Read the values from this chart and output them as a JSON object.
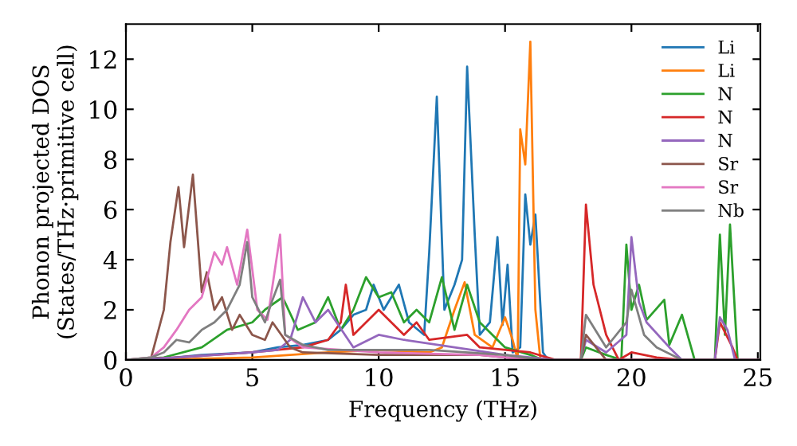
{
  "chart_data": {
    "type": "line",
    "xlabel": "Frequency (THz)",
    "ylabel": "Phonon projected DOS\n(States/THz·primitive cell)",
    "xlim": [
      0,
      25.1
    ],
    "ylim": [
      0,
      13.4
    ],
    "xticks": [
      0,
      5,
      10,
      15,
      20,
      25
    ],
    "yticks": [
      0,
      2,
      4,
      6,
      8,
      10,
      12
    ],
    "legend": "top right",
    "grid": false,
    "series": [
      {
        "name": "Li",
        "color": "#1f77b4",
        "x": [
          0,
          1,
          3,
          5,
          6,
          7,
          8,
          8.5,
          9,
          9.5,
          9.8,
          10.2,
          10.8,
          11.2,
          11.8,
          12.0,
          12.3,
          12.6,
          13.0,
          13.3,
          13.5,
          13.8,
          14.0,
          14.4,
          14.7,
          14.9,
          15.1,
          15.3,
          15.6,
          15.8,
          16.0,
          16.2,
          16.5,
          16.7,
          18,
          25
        ],
        "values": [
          0,
          0,
          0.2,
          0.3,
          0.5,
          0.6,
          0.8,
          1.2,
          1.8,
          2.0,
          3.0,
          2.0,
          3.0,
          1.5,
          1.0,
          4.3,
          10.5,
          2.0,
          3.0,
          4.0,
          11.7,
          5.0,
          1.0,
          1.5,
          4.9,
          1.4,
          3.8,
          0.3,
          0.5,
          6.6,
          4.6,
          5.8,
          0.3,
          0,
          0,
          0
        ]
      },
      {
        "name": "Li",
        "color": "#ff7f0e",
        "x": [
          0,
          1,
          5,
          8,
          10,
          12,
          12.5,
          13.0,
          13.4,
          13.8,
          14.5,
          15.0,
          15.3,
          15.5,
          15.6,
          15.8,
          16.0,
          16.2,
          16.4,
          25
        ],
        "values": [
          0,
          0,
          0.1,
          0.3,
          0.4,
          0.3,
          0.5,
          2.0,
          3.1,
          1.0,
          0.5,
          1.7,
          0.8,
          0,
          9.2,
          7.8,
          12.7,
          2.0,
          0,
          0
        ]
      },
      {
        "name": "N",
        "color": "#2ca02c",
        "x": [
          0,
          1.5,
          3,
          4,
          5,
          5.5,
          6.2,
          6.8,
          7.5,
          8,
          8.5,
          9,
          9.5,
          10,
          10.5,
          11,
          11.5,
          12,
          12.5,
          13,
          13.5,
          14,
          15,
          16,
          16.5,
          18,
          18.2,
          19,
          19.6,
          19.8,
          20,
          20.3,
          20.6,
          21.3,
          21.5,
          22,
          22.5,
          23.3,
          23.5,
          23.7,
          23.9,
          24.2,
          25
        ],
        "values": [
          0,
          0.1,
          0.5,
          1.2,
          1.5,
          2.0,
          2.5,
          1.2,
          1.5,
          2.5,
          1.2,
          2.0,
          3.3,
          2.5,
          2.7,
          1.5,
          2.0,
          1.5,
          3.3,
          1.2,
          3.0,
          1.5,
          0.5,
          0.2,
          0,
          0,
          0.5,
          0.2,
          0,
          4.6,
          2.0,
          3.0,
          1.6,
          2.4,
          0.6,
          1.8,
          0,
          0,
          5.0,
          1.0,
          5.4,
          0,
          0
        ]
      },
      {
        "name": "N",
        "color": "#d62728",
        "x": [
          0,
          2,
          5,
          7,
          8,
          8.5,
          8.7,
          9,
          10,
          11,
          11.5,
          12,
          13.5,
          14,
          16,
          17,
          18,
          18.2,
          18.5,
          19,
          19.5,
          20,
          21,
          22,
          23.3,
          23.5,
          24,
          24.2,
          25
        ],
        "values": [
          0,
          0.1,
          0.3,
          0.5,
          0.8,
          1.5,
          3.0,
          1.0,
          2.0,
          1.0,
          1.5,
          0.8,
          1.0,
          0.5,
          0.3,
          0,
          0,
          6.2,
          3.0,
          1.0,
          0,
          0.3,
          0.1,
          0,
          0,
          1.5,
          0.5,
          0,
          0
        ]
      },
      {
        "name": "N",
        "color": "#9467bd",
        "x": [
          0,
          2,
          5,
          6,
          6.5,
          7,
          7.5,
          8,
          9,
          10,
          11,
          13,
          15,
          17,
          18,
          18.2,
          19,
          19.8,
          20.0,
          20.3,
          20.6,
          21.5,
          22,
          23.3,
          23.5,
          23.8,
          24.1,
          25
        ],
        "values": [
          0,
          0.1,
          0.3,
          0.4,
          0.8,
          2.5,
          1.5,
          2.0,
          0.5,
          1.0,
          0.8,
          0.5,
          0.2,
          0,
          0,
          0.8,
          0.3,
          1.0,
          4.9,
          2.3,
          1.5,
          0.5,
          0,
          0,
          1.7,
          1.2,
          0,
          0
        ]
      },
      {
        "name": "Sr",
        "color": "#8c564b",
        "x": [
          0,
          1,
          1.5,
          1.76,
          2.08,
          2.3,
          2.65,
          3.0,
          3.2,
          3.5,
          3.8,
          4.2,
          4.5,
          5,
          5.5,
          5.8,
          6.5,
          7,
          10,
          14,
          16,
          18,
          18.2,
          19,
          25
        ],
        "values": [
          0,
          0.1,
          2.0,
          4.7,
          6.9,
          4.5,
          7.4,
          2.7,
          3.5,
          2.0,
          2.5,
          1.2,
          1.8,
          1.0,
          0.8,
          1.5,
          0.5,
          0.3,
          0.2,
          0.2,
          0,
          0,
          1.0,
          0,
          0
        ]
      },
      {
        "name": "Sr",
        "color": "#e377c2",
        "x": [
          0,
          1,
          1.5,
          2,
          2.5,
          3,
          3.5,
          3.8,
          4,
          4.4,
          4.8,
          5.2,
          5.6,
          6.1,
          6.3,
          7,
          10,
          14,
          16,
          25
        ],
        "values": [
          0,
          0.1,
          0.5,
          1.2,
          2.0,
          2.5,
          4.3,
          3.8,
          4.5,
          3.0,
          5.2,
          2.0,
          1.6,
          5.0,
          1.0,
          0.5,
          0.3,
          0.2,
          0,
          0
        ]
      },
      {
        "name": "Nb",
        "color": "#7f7f7f",
        "x": [
          0,
          1,
          1.5,
          2,
          2.5,
          3,
          3.5,
          4,
          4.5,
          4.8,
          5,
          5.5,
          5.8,
          6.1,
          6.3,
          7,
          8,
          12,
          15,
          16.5,
          18,
          18.2,
          19,
          19.8,
          20.0,
          20.5,
          21,
          22,
          25
        ],
        "values": [
          0,
          0.1,
          0.3,
          0.8,
          0.7,
          1.2,
          1.5,
          2.0,
          3.0,
          4.7,
          2.5,
          1.5,
          2.4,
          3.2,
          1.0,
          0.6,
          0.4,
          0.4,
          0.2,
          0,
          0,
          1.8,
          0.5,
          1.5,
          2.8,
          1.0,
          0.5,
          0,
          0
        ]
      }
    ]
  }
}
